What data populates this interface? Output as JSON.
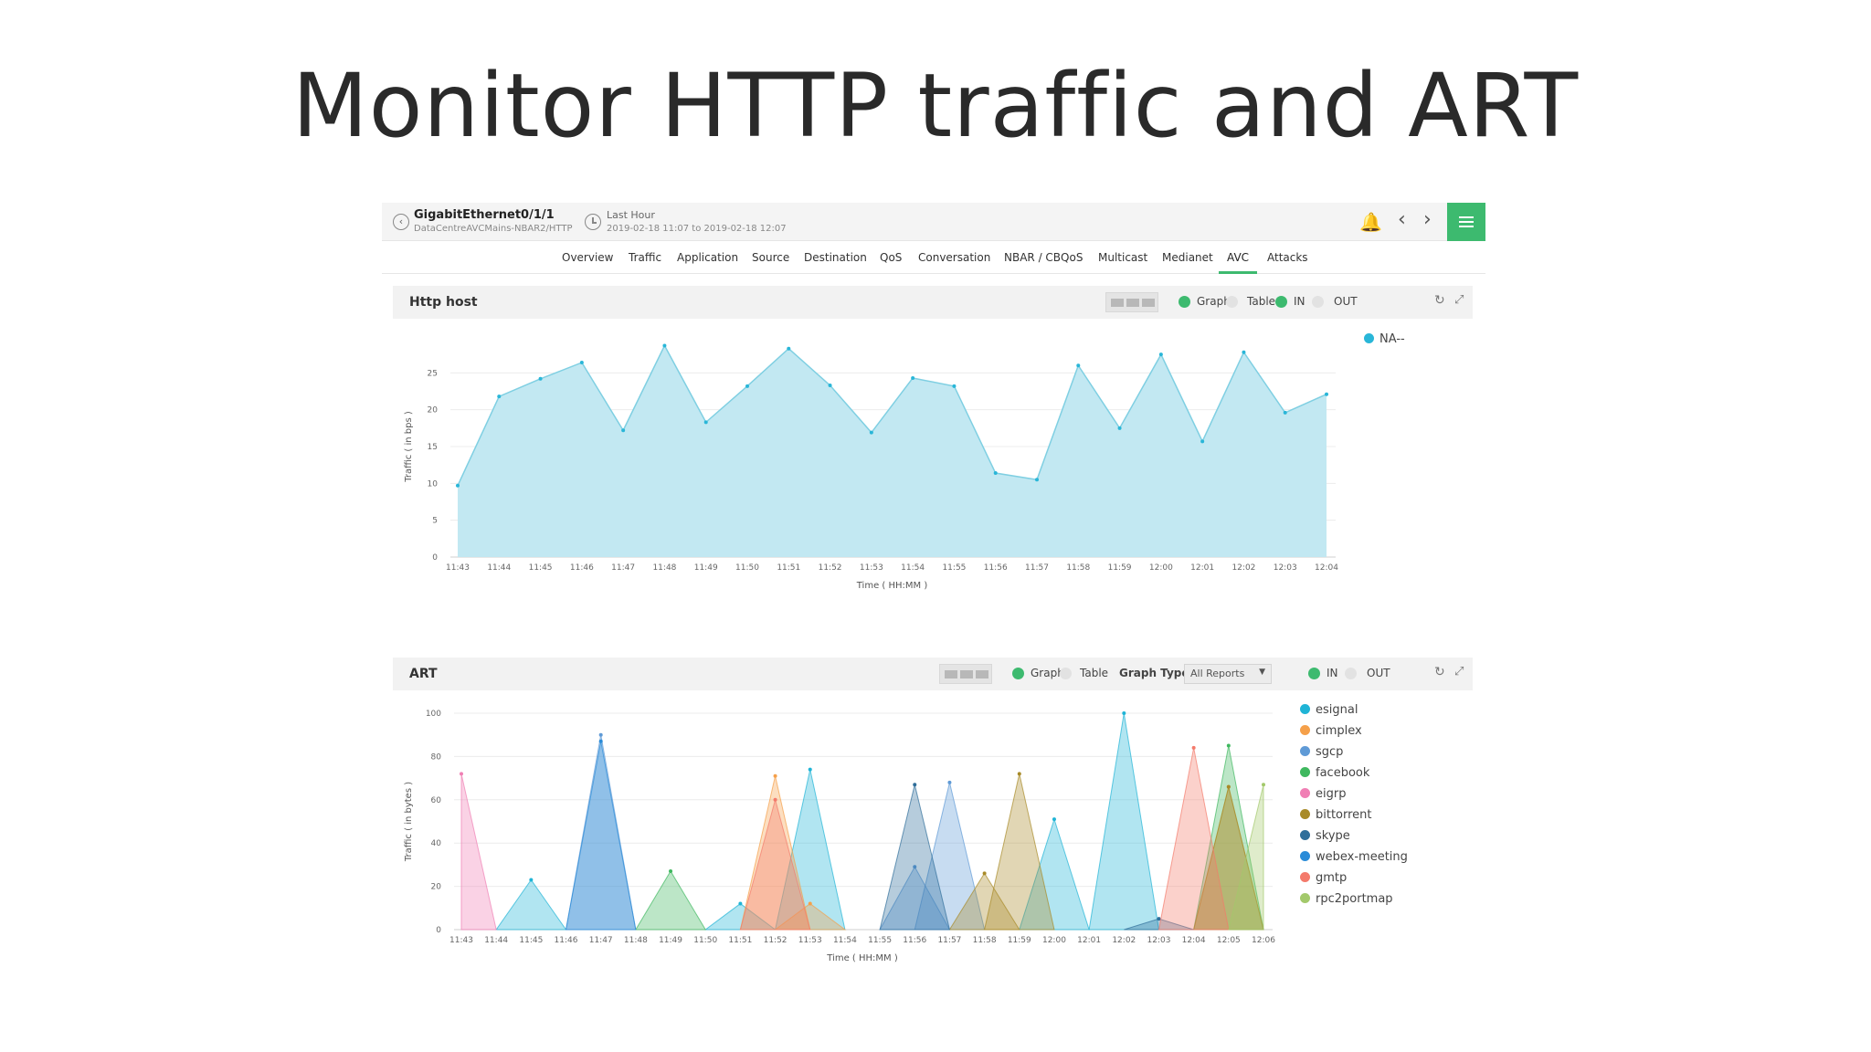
{
  "slide": {
    "title": "Monitor HTTP traffic and ART"
  },
  "header": {
    "device_name": "GigabitEthernet0/1/1",
    "device_path": "DataCentreAVCMains-NBAR2/HTTP",
    "time_label": "Last Hour",
    "time_range": "2019-02-18 11:07 to 2019-02-18 12:07"
  },
  "nav": {
    "tabs": [
      "Overview",
      "Traffic",
      "Application",
      "Source",
      "Destination",
      "QoS",
      "Conversation",
      "NBAR / CBQoS",
      "Multicast",
      "Medianet",
      "AVC",
      "Attacks"
    ],
    "active": "AVC"
  },
  "panels": {
    "http": {
      "title": "Http host",
      "graph_label": "Graph",
      "table_label": "Table",
      "in_label": "IN",
      "out_label": "OUT"
    },
    "art": {
      "title": "ART",
      "graph_label": "Graph",
      "table_label": "Table",
      "graph_type_label": "Graph Type",
      "graph_type_value": "All Reports",
      "in_label": "IN",
      "out_label": "OUT"
    }
  },
  "colors": {
    "accent": "#3dba6f",
    "http_fill": "#bfe7f1",
    "http_line": "#7fcfe2"
  },
  "chart_data": [
    {
      "type": "area",
      "title": "Http host",
      "xlabel": "Time ( HH:MM )",
      "ylabel": "Traffic ( in bps )",
      "ylim": [
        0,
        30
      ],
      "yticks": [
        0,
        5,
        10,
        15,
        20,
        25
      ],
      "grid": true,
      "legend_position": "top-right",
      "x": [
        "11:43",
        "11:44",
        "11:45",
        "11:46",
        "11:47",
        "11:48",
        "11:49",
        "11:50",
        "11:51",
        "11:52",
        "11:53",
        "11:54",
        "11:55",
        "11:56",
        "11:57",
        "11:58",
        "11:59",
        "12:00",
        "12:01",
        "12:02",
        "12:03",
        "12:04"
      ],
      "series": [
        {
          "name": "NA--",
          "color": "#29b6d8",
          "values": [
            9.7,
            21.8,
            24.2,
            26.4,
            17.2,
            28.7,
            18.3,
            23.2,
            28.3,
            23.3,
            16.9,
            24.3,
            23.2,
            11.4,
            10.5,
            26.0,
            17.5,
            27.5,
            15.7,
            27.8,
            19.6,
            22.1
          ]
        }
      ]
    },
    {
      "type": "area",
      "title": "ART",
      "xlabel": "Time ( HH:MM )",
      "ylabel": "Traffic ( in bytes )",
      "ylim": [
        0,
        100
      ],
      "yticks": [
        0,
        20,
        40,
        60,
        80,
        100
      ],
      "grid": true,
      "legend_position": "top-right",
      "x": [
        "11:43",
        "11:44",
        "11:45",
        "11:46",
        "11:47",
        "11:48",
        "11:49",
        "11:50",
        "11:51",
        "11:52",
        "11:53",
        "11:54",
        "11:55",
        "11:56",
        "11:57",
        "11:58",
        "11:59",
        "12:00",
        "12:01",
        "12:02",
        "12:03",
        "12:04",
        "12:05",
        "12:06"
      ],
      "series": [
        {
          "name": "esignal",
          "color": "#1fb4d6",
          "values": [
            0,
            0,
            23,
            0,
            0,
            0,
            0,
            0,
            12,
            0,
            74,
            0,
            0,
            0,
            0,
            0,
            0,
            51,
            0,
            100,
            0,
            0,
            0,
            0
          ]
        },
        {
          "name": "cimplex",
          "color": "#f5a04a",
          "values": [
            0,
            0,
            0,
            0,
            0,
            0,
            0,
            0,
            0,
            71,
            12,
            0,
            0,
            0,
            0,
            0,
            0,
            0,
            0,
            0,
            0,
            0,
            66,
            0
          ]
        },
        {
          "name": "sgcp",
          "color": "#5f9ad6",
          "values": [
            0,
            0,
            0,
            0,
            90,
            0,
            0,
            0,
            0,
            0,
            0,
            0,
            0,
            29,
            68,
            0,
            0,
            0,
            0,
            0,
            0,
            0,
            0,
            0
          ]
        },
        {
          "name": "facebook",
          "color": "#3fb85f",
          "values": [
            0,
            0,
            0,
            0,
            0,
            0,
            27,
            0,
            0,
            0,
            0,
            0,
            0,
            0,
            0,
            0,
            0,
            0,
            0,
            0,
            0,
            0,
            85,
            0
          ]
        },
        {
          "name": "eigrp",
          "color": "#f07fb4",
          "values": [
            72,
            0,
            0,
            0,
            0,
            0,
            0,
            0,
            0,
            0,
            0,
            0,
            0,
            0,
            0,
            0,
            0,
            0,
            0,
            0,
            0,
            0,
            0,
            0
          ]
        },
        {
          "name": "bittorrent",
          "color": "#a88a28",
          "values": [
            0,
            0,
            0,
            0,
            0,
            0,
            0,
            0,
            0,
            0,
            0,
            0,
            0,
            0,
            0,
            26,
            72,
            0,
            0,
            0,
            0,
            0,
            66,
            0
          ]
        },
        {
          "name": "skype",
          "color": "#2f6e9a",
          "values": [
            0,
            0,
            0,
            0,
            0,
            0,
            0,
            0,
            0,
            0,
            0,
            0,
            0,
            67,
            0,
            0,
            0,
            0,
            0,
            0,
            5,
            0,
            0,
            0
          ]
        },
        {
          "name": "webex-meeting",
          "color": "#2a8bd8",
          "values": [
            0,
            0,
            0,
            0,
            87,
            0,
            0,
            0,
            0,
            0,
            0,
            0,
            0,
            0,
            0,
            0,
            0,
            0,
            0,
            0,
            0,
            0,
            0,
            0
          ]
        },
        {
          "name": "gmtp",
          "color": "#f47a6b",
          "values": [
            0,
            0,
            0,
            0,
            0,
            0,
            0,
            0,
            0,
            60,
            0,
            0,
            0,
            0,
            0,
            0,
            0,
            0,
            0,
            0,
            0,
            84,
            0,
            0
          ]
        },
        {
          "name": "rpc2portmap",
          "color": "#a3c96b",
          "values": [
            0,
            0,
            0,
            0,
            0,
            0,
            0,
            0,
            0,
            0,
            0,
            0,
            0,
            0,
            0,
            0,
            0,
            0,
            0,
            0,
            0,
            0,
            0,
            67
          ]
        }
      ]
    }
  ]
}
